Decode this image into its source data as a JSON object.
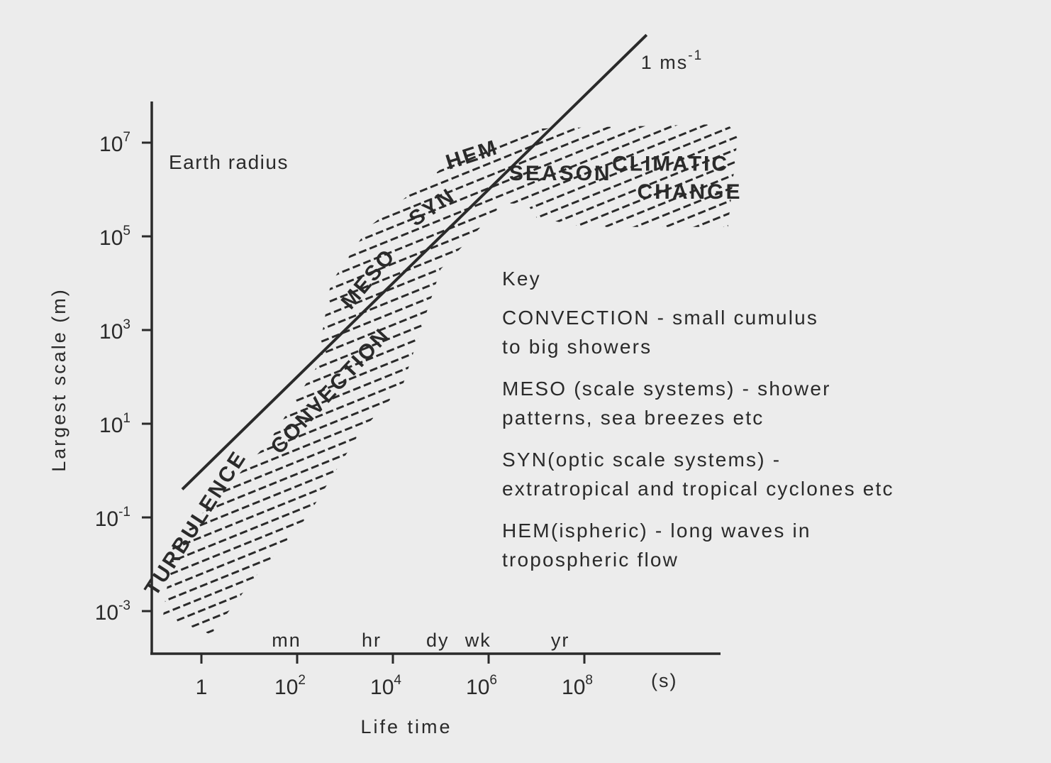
{
  "chart_data": {
    "type": "scatter",
    "x_axis": {
      "title": "Life time",
      "scale": "log10",
      "unit_label": "(s)",
      "ticks": [
        {
          "value": 1,
          "base": "1",
          "exp": ""
        },
        {
          "value": 100,
          "base": "10",
          "exp": "2"
        },
        {
          "value": 10000,
          "base": "10",
          "exp": "4"
        },
        {
          "value": 1000000,
          "base": "10",
          "exp": "6"
        },
        {
          "value": 100000000,
          "base": "10",
          "exp": "8"
        }
      ],
      "time_marks": [
        {
          "label": "mn",
          "value": 60
        },
        {
          "label": "hr",
          "value": 3600
        },
        {
          "label": "dy",
          "value": 86400
        },
        {
          "label": "wk",
          "value": 604800
        },
        {
          "label": "yr",
          "value": 31536000
        }
      ]
    },
    "y_axis": {
      "title": "Largest scale (m)",
      "scale": "log10",
      "ticks": [
        {
          "value": 0.001,
          "base": "10",
          "exp": "-3"
        },
        {
          "value": 0.1,
          "base": "10",
          "exp": "-1"
        },
        {
          "value": 10,
          "base": "10",
          "exp": "1"
        },
        {
          "value": 1000,
          "base": "10",
          "exp": "3"
        },
        {
          "value": 100000,
          "base": "10",
          "exp": "5"
        },
        {
          "value": 10000000,
          "base": "10",
          "exp": "7"
        }
      ]
    },
    "reference_line": {
      "label_base": "1 ms",
      "label_exp": "-1",
      "log_x": [
        -0.4,
        9.3
      ],
      "log_y": [
        -0.4,
        9.3
      ]
    },
    "earth_radius_label": "Earth radius",
    "regions": [
      {
        "label": "TURBULENCE",
        "log_x": 0.0,
        "log_y": -1.2
      },
      {
        "label": "CONVECTION",
        "log_x": 2.8,
        "log_y": 1.6
      },
      {
        "label": "MESO",
        "log_x": 3.6,
        "log_y": 4.0
      },
      {
        "label": "SYN",
        "log_x": 4.9,
        "log_y": 5.5
      },
      {
        "label": "HEM",
        "log_x": 5.7,
        "log_y": 6.6
      },
      {
        "label": "SEASON",
        "log_x": 7.5,
        "log_y": 6.2
      },
      {
        "label": "CLIMATIC",
        "log_x": 9.8,
        "log_y": 6.4
      },
      {
        "label": "CHANGE",
        "log_x": 10.2,
        "log_y": 5.8
      }
    ],
    "envelope_log": [
      [
        -0.8,
        -3.1
      ],
      [
        -0.6,
        -1.6
      ],
      [
        0.3,
        -0.6
      ],
      [
        1.4,
        0.6
      ],
      [
        2.4,
        2.2
      ],
      [
        2.7,
        4.0
      ],
      [
        3.5,
        5.2
      ],
      [
        5.2,
        6.6
      ],
      [
        7.0,
        7.3
      ],
      [
        11.0,
        7.4
      ],
      [
        11.2,
        7.1
      ],
      [
        11.0,
        5.2
      ],
      [
        8.0,
        5.2
      ],
      [
        7.0,
        5.4
      ],
      [
        6.8,
        5.7
      ],
      [
        6.3,
        5.7
      ],
      [
        5.0,
        4.3
      ],
      [
        4.2,
        1.8
      ],
      [
        3.3,
        0.8
      ],
      [
        2.2,
        -1.0
      ],
      [
        1.1,
        -2.3
      ],
      [
        0.2,
        -3.5
      ]
    ]
  },
  "key": {
    "title": "Key",
    "entries": [
      {
        "line1": "CONVECTION - small cumulus",
        "line2": "to big showers"
      },
      {
        "line1": "MESO (scale systems) - shower",
        "line2": "patterns, sea breezes etc"
      },
      {
        "line1": "SYN(optic scale systems) -",
        "line2": "extratropical and tropical cyclones etc"
      },
      {
        "line1": "HEM(ispheric) - long waves in",
        "line2": "tropospheric flow"
      }
    ]
  },
  "colors": {
    "background": "#ececec",
    "ink": "#2a2a2a"
  }
}
